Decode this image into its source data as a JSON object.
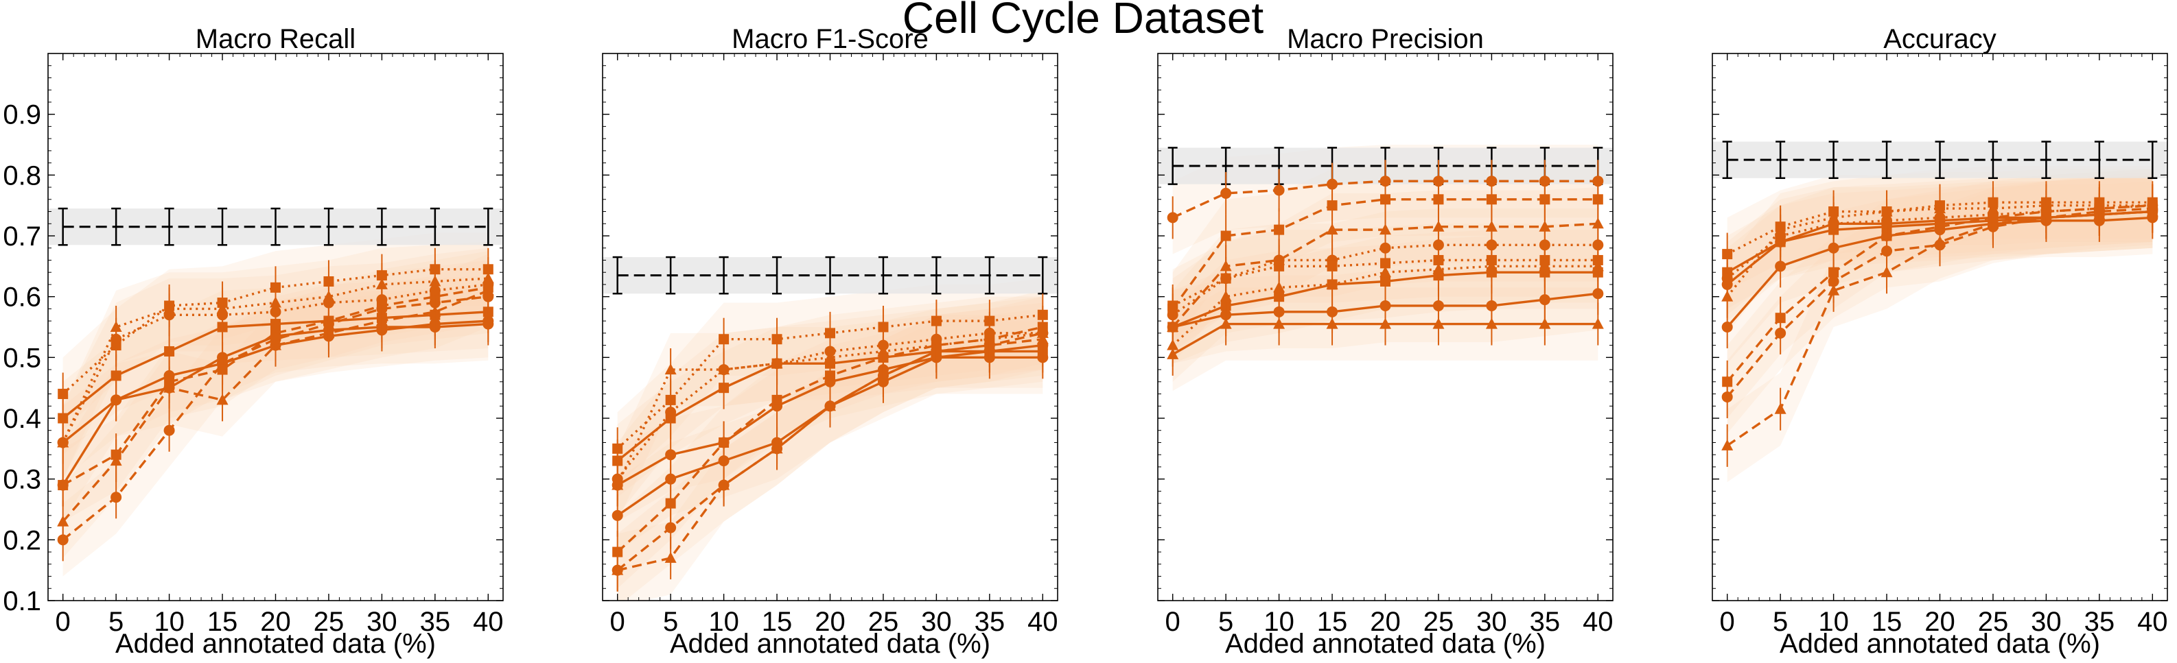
{
  "figure_title": "Cell Cycle Dataset",
  "chart_data": [
    {
      "type": "line",
      "title": "Macro Recall",
      "xlabel": "Added annotated data (%)",
      "ylabel": "",
      "x": [
        0,
        5,
        10,
        15,
        20,
        25,
        30,
        35,
        40
      ],
      "xticks": [
        "0",
        "5",
        "10",
        "15",
        "20",
        "25",
        "30",
        "35",
        "40"
      ],
      "ylim": [
        0.1,
        1.0
      ],
      "yticks": [
        "0.1",
        "0.2",
        "0.3",
        "0.4",
        "0.5",
        "0.6",
        "0.7",
        "0.8",
        "0.9"
      ],
      "show_yticks": true,
      "baseline": {
        "value": 0.715,
        "band": [
          0.685,
          0.745
        ],
        "err": 0.03
      },
      "series": [
        {
          "style": "solid",
          "marker": "circle",
          "values": [
            0.29,
            0.43,
            0.47,
            0.49,
            0.52,
            0.535,
            0.545,
            0.555,
            0.56
          ]
        },
        {
          "style": "solid",
          "marker": "square",
          "values": [
            0.4,
            0.47,
            0.51,
            0.55,
            0.555,
            0.56,
            0.565,
            0.57,
            0.575
          ]
        },
        {
          "style": "solid",
          "marker": "circle",
          "values": [
            0.36,
            0.43,
            0.45,
            0.5,
            0.535,
            0.545,
            0.55,
            0.55,
            0.555
          ]
        },
        {
          "style": "dashed",
          "marker": "triangle",
          "values": [
            0.23,
            0.33,
            0.45,
            0.43,
            0.52,
            0.54,
            0.56,
            0.575,
            0.61
          ]
        },
        {
          "style": "dashed",
          "marker": "circle",
          "values": [
            0.2,
            0.27,
            0.38,
            0.49,
            0.53,
            0.555,
            0.58,
            0.59,
            0.6
          ]
        },
        {
          "style": "dashed",
          "marker": "square",
          "values": [
            0.29,
            0.34,
            0.46,
            0.48,
            0.54,
            0.56,
            0.585,
            0.6,
            0.615
          ]
        },
        {
          "style": "dotted",
          "marker": "triangle",
          "values": [
            0.36,
            0.55,
            0.58,
            0.58,
            0.59,
            0.6,
            0.62,
            0.625,
            0.63
          ]
        },
        {
          "style": "dotted",
          "marker": "square",
          "values": [
            0.44,
            0.52,
            0.585,
            0.59,
            0.615,
            0.625,
            0.635,
            0.645,
            0.645
          ]
        },
        {
          "style": "dotted",
          "marker": "circle",
          "values": [
            0.36,
            0.53,
            0.57,
            0.57,
            0.575,
            0.59,
            0.595,
            0.61,
            0.62
          ]
        }
      ]
    },
    {
      "type": "line",
      "title": "Macro F1-Score",
      "xlabel": "Added annotated data (%)",
      "ylabel": "",
      "x": [
        0,
        5,
        10,
        15,
        20,
        25,
        30,
        35,
        40
      ],
      "xticks": [
        "0",
        "5",
        "10",
        "15",
        "20",
        "25",
        "30",
        "35",
        "40"
      ],
      "ylim": [
        0.1,
        1.0
      ],
      "yticks": [],
      "show_yticks": false,
      "baseline": {
        "value": 0.635,
        "band": [
          0.605,
          0.665
        ],
        "err": 0.03
      },
      "series": [
        {
          "style": "solid",
          "marker": "circle",
          "values": [
            0.24,
            0.3,
            0.33,
            0.36,
            0.42,
            0.46,
            0.5,
            0.5,
            0.5
          ]
        },
        {
          "style": "solid",
          "marker": "square",
          "values": [
            0.33,
            0.4,
            0.45,
            0.49,
            0.49,
            0.5,
            0.51,
            0.51,
            0.51
          ]
        },
        {
          "style": "solid",
          "marker": "circle",
          "values": [
            0.29,
            0.34,
            0.36,
            0.42,
            0.46,
            0.48,
            0.5,
            0.51,
            0.52
          ]
        },
        {
          "style": "dashed",
          "marker": "triangle",
          "values": [
            0.15,
            0.17,
            0.29,
            0.35,
            0.42,
            0.47,
            0.51,
            0.52,
            0.53
          ]
        },
        {
          "style": "dashed",
          "marker": "circle",
          "values": [
            0.15,
            0.22,
            0.29,
            0.35,
            0.42,
            0.47,
            0.51,
            0.52,
            0.54
          ]
        },
        {
          "style": "dashed",
          "marker": "square",
          "values": [
            0.18,
            0.26,
            0.36,
            0.43,
            0.47,
            0.5,
            0.52,
            0.53,
            0.55
          ]
        },
        {
          "style": "dotted",
          "marker": "triangle",
          "values": [
            0.29,
            0.48,
            0.48,
            0.49,
            0.5,
            0.51,
            0.52,
            0.53,
            0.54
          ]
        },
        {
          "style": "dotted",
          "marker": "square",
          "values": [
            0.35,
            0.43,
            0.53,
            0.53,
            0.54,
            0.55,
            0.56,
            0.56,
            0.57
          ]
        },
        {
          "style": "dotted",
          "marker": "circle",
          "values": [
            0.3,
            0.41,
            0.48,
            0.49,
            0.51,
            0.52,
            0.53,
            0.54,
            0.54
          ]
        }
      ]
    },
    {
      "type": "line",
      "title": "Macro Precision",
      "xlabel": "Added annotated data (%)",
      "ylabel": "",
      "x": [
        0,
        5,
        10,
        15,
        20,
        25,
        30,
        35,
        40
      ],
      "xticks": [
        "0",
        "5",
        "10",
        "15",
        "20",
        "25",
        "30",
        "35",
        "40"
      ],
      "ylim": [
        0.1,
        1.0
      ],
      "yticks": [],
      "show_yticks": false,
      "baseline": {
        "value": 0.815,
        "band": [
          0.785,
          0.845
        ],
        "err": 0.03
      },
      "series": [
        {
          "style": "solid",
          "marker": "circle",
          "values": [
            0.55,
            0.57,
            0.575,
            0.575,
            0.585,
            0.585,
            0.585,
            0.595,
            0.605
          ]
        },
        {
          "style": "solid",
          "marker": "square",
          "values": [
            0.55,
            0.585,
            0.6,
            0.62,
            0.625,
            0.635,
            0.64,
            0.64,
            0.64
          ]
        },
        {
          "style": "solid",
          "marker": "triangle",
          "values": [
            0.505,
            0.555,
            0.555,
            0.555,
            0.555,
            0.555,
            0.555,
            0.555,
            0.555
          ]
        },
        {
          "style": "dashed",
          "marker": "circle",
          "values": [
            0.73,
            0.77,
            0.775,
            0.785,
            0.79,
            0.79,
            0.79,
            0.79,
            0.79
          ]
        },
        {
          "style": "dashed",
          "marker": "square",
          "values": [
            0.58,
            0.7,
            0.71,
            0.75,
            0.76,
            0.76,
            0.76,
            0.76,
            0.76
          ]
        },
        {
          "style": "dashed",
          "marker": "triangle",
          "values": [
            0.55,
            0.65,
            0.66,
            0.71,
            0.71,
            0.715,
            0.715,
            0.715,
            0.72
          ]
        },
        {
          "style": "dotted",
          "marker": "circle",
          "values": [
            0.57,
            0.63,
            0.66,
            0.66,
            0.68,
            0.685,
            0.685,
            0.685,
            0.685
          ]
        },
        {
          "style": "dotted",
          "marker": "square",
          "values": [
            0.585,
            0.63,
            0.65,
            0.65,
            0.655,
            0.66,
            0.66,
            0.66,
            0.66
          ]
        },
        {
          "style": "dotted",
          "marker": "triangle",
          "values": [
            0.52,
            0.6,
            0.615,
            0.62,
            0.64,
            0.645,
            0.65,
            0.65,
            0.65
          ]
        }
      ]
    },
    {
      "type": "line",
      "title": "Accuracy",
      "xlabel": "Added annotated data (%)",
      "ylabel": "",
      "x": [
        0,
        5,
        10,
        15,
        20,
        25,
        30,
        35,
        40
      ],
      "xticks": [
        "0",
        "5",
        "10",
        "15",
        "20",
        "25",
        "30",
        "35",
        "40"
      ],
      "ylim": [
        0.1,
        1.0
      ],
      "yticks": [],
      "show_yticks": false,
      "baseline": {
        "value": 0.825,
        "band": [
          0.795,
          0.855
        ],
        "err": 0.03
      },
      "series": [
        {
          "style": "solid",
          "marker": "circle",
          "values": [
            0.55,
            0.65,
            0.68,
            0.7,
            0.71,
            0.72,
            0.725,
            0.725,
            0.73
          ]
        },
        {
          "style": "solid",
          "marker": "square",
          "values": [
            0.64,
            0.69,
            0.71,
            0.715,
            0.72,
            0.725,
            0.73,
            0.735,
            0.74
          ]
        },
        {
          "style": "solid",
          "marker": "circle",
          "values": [
            0.62,
            0.69,
            0.72,
            0.72,
            0.725,
            0.73,
            0.73,
            0.735,
            0.74
          ]
        },
        {
          "style": "dashed",
          "marker": "triangle",
          "values": [
            0.355,
            0.415,
            0.61,
            0.64,
            0.69,
            0.72,
            0.73,
            0.735,
            0.74
          ]
        },
        {
          "style": "dashed",
          "marker": "circle",
          "values": [
            0.435,
            0.54,
            0.625,
            0.675,
            0.685,
            0.715,
            0.73,
            0.74,
            0.745
          ]
        },
        {
          "style": "dashed",
          "marker": "square",
          "values": [
            0.46,
            0.565,
            0.64,
            0.7,
            0.715,
            0.73,
            0.74,
            0.745,
            0.75
          ]
        },
        {
          "style": "dotted",
          "marker": "triangle",
          "values": [
            0.6,
            0.71,
            0.73,
            0.74,
            0.745,
            0.745,
            0.75,
            0.75,
            0.75
          ]
        },
        {
          "style": "dotted",
          "marker": "square",
          "values": [
            0.67,
            0.715,
            0.74,
            0.74,
            0.75,
            0.755,
            0.755,
            0.755,
            0.755
          ]
        },
        {
          "style": "dotted",
          "marker": "circle",
          "values": [
            0.63,
            0.7,
            0.72,
            0.725,
            0.73,
            0.735,
            0.74,
            0.745,
            0.75
          ]
        }
      ]
    }
  ],
  "colors": {
    "series": "#d95f0e",
    "band": "#fbd5b5",
    "baseline": "#000000",
    "baseline_band": "#e6e6e6"
  }
}
